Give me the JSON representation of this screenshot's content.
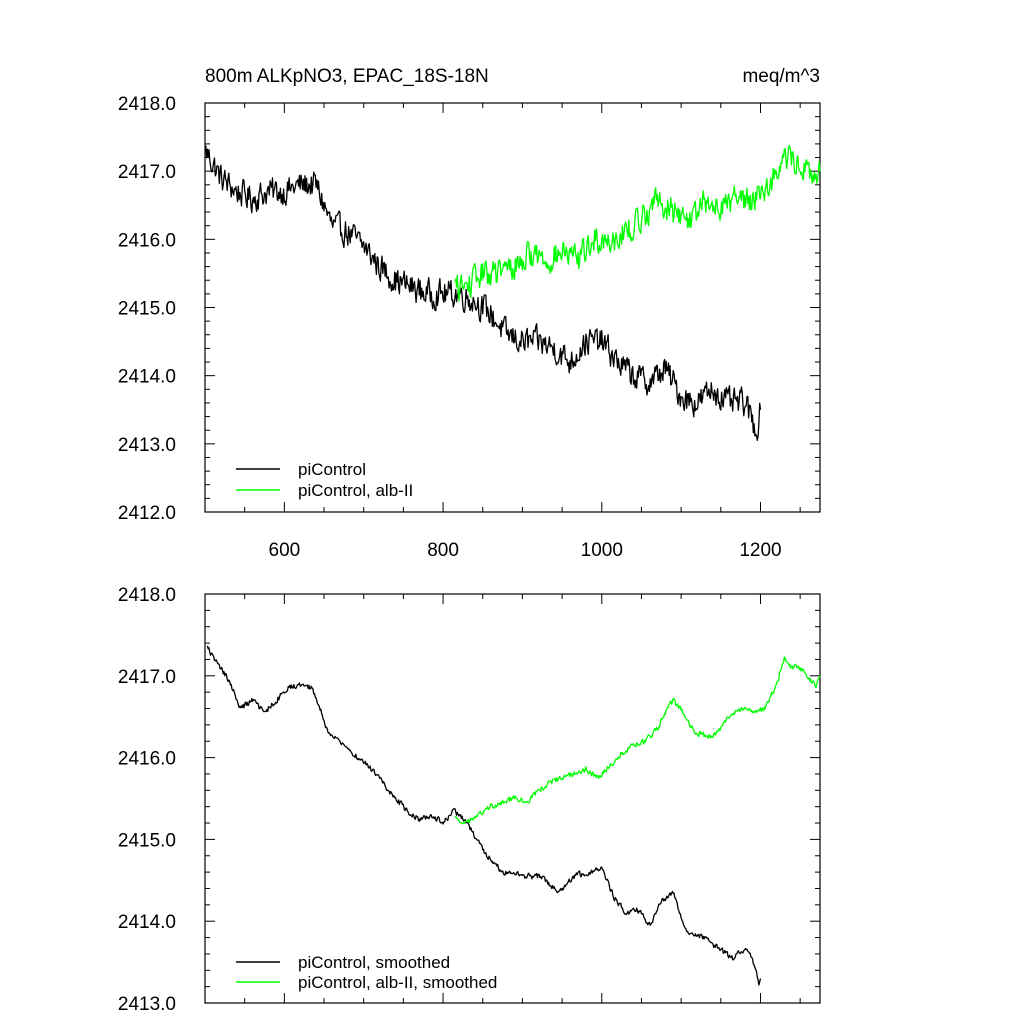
{
  "colors": {
    "black": "#000000",
    "green": "#00ff00",
    "background": "#ffffff"
  },
  "chart_data": [
    {
      "type": "line",
      "title": "800m ALKpNO3, EPAC_18S-18N",
      "units": "meq/m^3",
      "xlim": [
        500,
        1275
      ],
      "ylim": [
        2412.0,
        2418.0
      ],
      "x_ticks": [
        600,
        800,
        1000,
        1200
      ],
      "x_tick_labels": [
        "600",
        "800",
        "1000",
        "1200"
      ],
      "y_ticks": [
        2412.0,
        2413.0,
        2414.0,
        2415.0,
        2416.0,
        2417.0,
        2418.0
      ],
      "y_tick_labels": [
        "2412.0",
        "2413.0",
        "2414.0",
        "2415.0",
        "2416.0",
        "2417.0",
        "2418.0"
      ],
      "legend_position": "bottom-left",
      "grid": false,
      "series": [
        {
          "name": "piControl",
          "color": "#000000",
          "noise": 0.28,
          "x": [
            501,
            520,
            540,
            560,
            580,
            600,
            620,
            640,
            660,
            680,
            700,
            720,
            740,
            760,
            780,
            800,
            820,
            840,
            860,
            880,
            900,
            920,
            940,
            960,
            980,
            1000,
            1020,
            1040,
            1060,
            1080,
            1100,
            1120,
            1140,
            1160,
            1180,
            1195,
            1200
          ],
          "y": [
            2417.3,
            2416.9,
            2416.7,
            2416.6,
            2416.7,
            2416.7,
            2416.8,
            2416.8,
            2416.2,
            2416.1,
            2415.9,
            2415.6,
            2415.4,
            2415.3,
            2415.2,
            2415.2,
            2415.2,
            2415.1,
            2414.9,
            2414.6,
            2414.5,
            2414.5,
            2414.4,
            2414.2,
            2414.5,
            2414.5,
            2414.2,
            2414.0,
            2413.9,
            2414.1,
            2413.7,
            2413.6,
            2413.8,
            2413.6,
            2413.6,
            2413.2,
            2413.5
          ]
        },
        {
          "name": "piControl, alb-II",
          "color": "#00ff00",
          "noise": 0.28,
          "x": [
            815,
            830,
            850,
            870,
            890,
            910,
            930,
            950,
            970,
            990,
            1010,
            1030,
            1050,
            1070,
            1090,
            1110,
            1130,
            1150,
            1170,
            1190,
            1210,
            1230,
            1250,
            1265,
            1275
          ],
          "y": [
            2415.3,
            2415.3,
            2415.5,
            2415.5,
            2415.6,
            2415.8,
            2415.7,
            2415.8,
            2415.7,
            2416.0,
            2416.0,
            2416.1,
            2416.3,
            2416.6,
            2416.4,
            2416.3,
            2416.5,
            2416.5,
            2416.6,
            2416.6,
            2416.8,
            2417.2,
            2417.1,
            2416.9,
            2417.0
          ]
        }
      ]
    },
    {
      "type": "line",
      "xlim": [
        500,
        1275
      ],
      "ylim": [
        2413.0,
        2418.0
      ],
      "x_ticks": [
        600,
        800,
        1000,
        1200
      ],
      "y_ticks": [
        2413.0,
        2414.0,
        2415.0,
        2416.0,
        2417.0,
        2418.0
      ],
      "y_tick_labels": [
        "2413.0",
        "2414.0",
        "2415.0",
        "2416.0",
        "2417.0",
        "2418.0"
      ],
      "legend_position": "bottom-left",
      "grid": false,
      "series": [
        {
          "name": "piControl, smoothed",
          "color": "#000000",
          "noise": 0.05,
          "x": [
            503,
            515,
            530,
            545,
            560,
            575,
            590,
            605,
            620,
            635,
            645,
            655,
            665,
            680,
            700,
            720,
            740,
            755,
            770,
            785,
            800,
            815,
            830,
            845,
            860,
            875,
            890,
            905,
            925,
            945,
            965,
            985,
            1000,
            1015,
            1030,
            1045,
            1060,
            1075,
            1090,
            1105,
            1120,
            1135,
            1150,
            1165,
            1180,
            1190,
            1198,
            1200
          ],
          "y": [
            2417.35,
            2417.15,
            2416.95,
            2416.6,
            2416.7,
            2416.55,
            2416.7,
            2416.85,
            2416.9,
            2416.85,
            2416.6,
            2416.3,
            2416.25,
            2416.1,
            2415.95,
            2415.75,
            2415.5,
            2415.35,
            2415.25,
            2415.3,
            2415.2,
            2415.35,
            2415.2,
            2414.95,
            2414.75,
            2414.6,
            2414.6,
            2414.55,
            2414.55,
            2414.35,
            2414.55,
            2414.6,
            2414.65,
            2414.3,
            2414.1,
            2414.15,
            2413.95,
            2414.25,
            2414.35,
            2413.9,
            2413.85,
            2413.75,
            2413.65,
            2413.55,
            2413.65,
            2413.55,
            2413.25,
            2413.3
          ]
        },
        {
          "name": "piControl, alb-II, smoothed",
          "color": "#00ff00",
          "noise": 0.05,
          "x": [
            815,
            830,
            845,
            860,
            875,
            890,
            905,
            920,
            935,
            950,
            965,
            980,
            995,
            1010,
            1025,
            1040,
            1055,
            1070,
            1080,
            1090,
            1100,
            1110,
            1120,
            1135,
            1150,
            1165,
            1180,
            1195,
            1205,
            1220,
            1230,
            1240,
            1250,
            1260,
            1270,
            1275
          ],
          "y": [
            2415.25,
            2415.2,
            2415.3,
            2415.4,
            2415.45,
            2415.5,
            2415.45,
            2415.6,
            2415.7,
            2415.75,
            2415.8,
            2415.85,
            2415.75,
            2415.9,
            2416.05,
            2416.15,
            2416.2,
            2416.35,
            2416.55,
            2416.7,
            2416.6,
            2416.4,
            2416.3,
            2416.25,
            2416.35,
            2416.55,
            2416.6,
            2416.55,
            2416.6,
            2416.9,
            2417.2,
            2417.1,
            2417.1,
            2417.0,
            2416.85,
            2417.0
          ]
        }
      ]
    }
  ]
}
